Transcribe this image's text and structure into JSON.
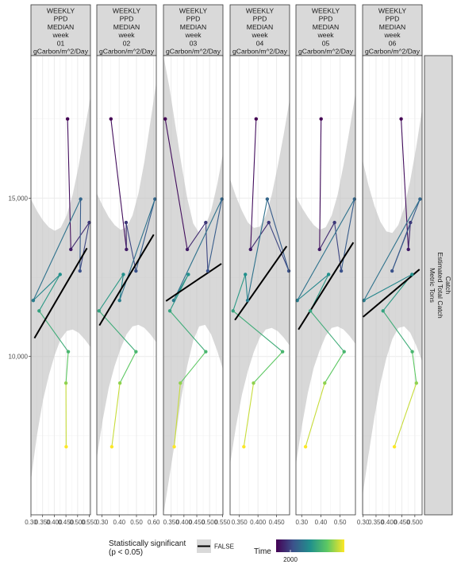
{
  "chart_data": {
    "type": "scatter",
    "row_strip_lines": [
      "Catch",
      "Estimated Total Catch",
      "Metric Tons"
    ],
    "y_ticks": [
      10000,
      15000
    ],
    "y_tick_labels": [
      "10,000",
      "15,000"
    ],
    "ylim": [
      5000,
      19500
    ],
    "panels": [
      {
        "strip_lines": [
          "WEEKLY",
          "PPD",
          "MEDIAN",
          "week",
          "01",
          "gCarbon/m^2/Day"
        ],
        "xlim": [
          0.3,
          0.555
        ],
        "x_ticks": [
          0.3,
          0.35,
          0.4,
          0.45,
          0.5,
          0.55
        ],
        "x_tick_labels": [
          "0.30",
          "0.350",
          "0.400",
          "0.450",
          "0.500",
          "0.550"
        ],
        "points": [
          {
            "x": 0.457,
            "y": 17500,
            "t": 0.0
          },
          {
            "x": 0.471,
            "y": 13380,
            "t": 0.08
          },
          {
            "x": 0.55,
            "y": 14230,
            "t": 0.17
          },
          {
            "x": 0.51,
            "y": 12700,
            "t": 0.25
          },
          {
            "x": 0.513,
            "y": 14970,
            "t": 0.33
          },
          {
            "x": 0.31,
            "y": 11770,
            "t": 0.42
          },
          {
            "x": 0.425,
            "y": 12590,
            "t": 0.5
          },
          {
            "x": 0.335,
            "y": 11440,
            "t": 0.58
          },
          {
            "x": 0.46,
            "y": 10150,
            "t": 0.67
          },
          {
            "x": 0.45,
            "y": 9160,
            "t": 0.83
          },
          {
            "x": 0.451,
            "y": 7150,
            "t": 1.0
          }
        ],
        "fit": {
          "x": [
            0.315,
            0.54
          ],
          "y": [
            10580,
            13420
          ]
        },
        "band_upper": [
          14970,
          14600,
          14300,
          14080,
          13970,
          14070,
          14450,
          15100,
          16000,
          17100,
          18200
        ],
        "band_lower": [
          6100,
          7500,
          8600,
          9400,
          10050,
          10550,
          10800,
          10850,
          10750,
          10550,
          10300
        ]
      },
      {
        "strip_lines": [
          "WEEKLY",
          "PPD",
          "MEDIAN",
          "week",
          "02",
          "gCarbon/m^2/Day"
        ],
        "xlim": [
          0.27,
          0.615
        ],
        "x_ticks": [
          0.3,
          0.4,
          0.5,
          0.6
        ],
        "x_tick_labels": [
          "0.30",
          "0.40",
          "0.50",
          "0.60"
        ],
        "points": [
          {
            "x": 0.352,
            "y": 17500,
            "t": 0.0
          },
          {
            "x": 0.442,
            "y": 13380,
            "t": 0.08
          },
          {
            "x": 0.44,
            "y": 14230,
            "t": 0.17
          },
          {
            "x": 0.497,
            "y": 12700,
            "t": 0.25
          },
          {
            "x": 0.607,
            "y": 14970,
            "t": 0.33
          },
          {
            "x": 0.402,
            "y": 11770,
            "t": 0.42
          },
          {
            "x": 0.424,
            "y": 12590,
            "t": 0.5
          },
          {
            "x": 0.283,
            "y": 11440,
            "t": 0.58
          },
          {
            "x": 0.497,
            "y": 10150,
            "t": 0.67
          },
          {
            "x": 0.404,
            "y": 9160,
            "t": 0.83
          },
          {
            "x": 0.357,
            "y": 7150,
            "t": 1.0
          }
        ],
        "fit": {
          "x": [
            0.285,
            0.6
          ],
          "y": [
            10980,
            13850
          ]
        },
        "band_upper": [
          15150,
          14750,
          14400,
          14150,
          14000,
          14080,
          14450,
          15150,
          16150,
          17400,
          18650
        ],
        "band_lower": [
          6800,
          8000,
          9000,
          9700,
          10250,
          10700,
          10950,
          11000,
          10900,
          10700,
          10450
        ]
      },
      {
        "strip_lines": [
          "WEEKLY",
          "PPD",
          "MEDIAN",
          "week",
          "03",
          "gCarbon/m^2/Day"
        ],
        "xlim": [
          0.32,
          0.552
        ],
        "x_ticks": [
          0.35,
          0.4,
          0.45,
          0.5,
          0.55
        ],
        "x_tick_labels": [
          "0.350",
          "0.400",
          "0.450",
          "0.500",
          "0.550"
        ],
        "points": [
          {
            "x": 0.327,
            "y": 17500,
            "t": 0.0
          },
          {
            "x": 0.413,
            "y": 13380,
            "t": 0.08
          },
          {
            "x": 0.485,
            "y": 14230,
            "t": 0.17
          },
          {
            "x": 0.493,
            "y": 12700,
            "t": 0.25
          },
          {
            "x": 0.548,
            "y": 14970,
            "t": 0.33
          },
          {
            "x": 0.36,
            "y": 11770,
            "t": 0.42
          },
          {
            "x": 0.417,
            "y": 12590,
            "t": 0.5
          },
          {
            "x": 0.345,
            "y": 11440,
            "t": 0.58
          },
          {
            "x": 0.485,
            "y": 10150,
            "t": 0.67
          },
          {
            "x": 0.386,
            "y": 9160,
            "t": 0.83
          },
          {
            "x": 0.362,
            "y": 7150,
            "t": 1.0
          }
        ],
        "fit": {
          "x": [
            0.33,
            0.546
          ],
          "y": [
            11750,
            12930
          ]
        },
        "band_upper": [
          19500,
          18500,
          17300,
          16100,
          15000,
          14200,
          13900,
          14100,
          14600,
          15400,
          16400
        ],
        "band_lower": [
          5000,
          6200,
          7400,
          8700,
          9700,
          10500,
          10950,
          11000,
          10700,
          10200,
          9600
        ]
      },
      {
        "strip_lines": [
          "WEEKLY",
          "PPD",
          "MEDIAN",
          "week",
          "04",
          "gCarbon/m^2/Day"
        ],
        "xlim": [
          0.325,
          0.485
        ],
        "x_ticks": [
          0.35,
          0.4,
          0.45
        ],
        "x_tick_labels": [
          "0.350",
          "0.400",
          "0.450"
        ],
        "points": [
          {
            "x": 0.395,
            "y": 17500,
            "t": 0.0
          },
          {
            "x": 0.38,
            "y": 13380,
            "t": 0.08
          },
          {
            "x": 0.429,
            "y": 14230,
            "t": 0.17
          },
          {
            "x": 0.483,
            "y": 12700,
            "t": 0.25
          },
          {
            "x": 0.425,
            "y": 14970,
            "t": 0.33
          },
          {
            "x": 0.372,
            "y": 11770,
            "t": 0.42
          },
          {
            "x": 0.366,
            "y": 12590,
            "t": 0.5
          },
          {
            "x": 0.333,
            "y": 11440,
            "t": 0.58
          },
          {
            "x": 0.466,
            "y": 10150,
            "t": 0.67
          },
          {
            "x": 0.388,
            "y": 9160,
            "t": 0.83
          },
          {
            "x": 0.362,
            "y": 7150,
            "t": 1.0
          }
        ],
        "fit": {
          "x": [
            0.338,
            0.477
          ],
          "y": [
            11150,
            13480
          ]
        },
        "band_upper": [
          15600,
          15050,
          14600,
          14230,
          14060,
          14100,
          14450,
          15100,
          16000,
          17000,
          18100
        ],
        "band_lower": [
          6600,
          7800,
          8800,
          9550,
          10150,
          10600,
          10850,
          10900,
          10800,
          10600,
          10350
        ]
      },
      {
        "strip_lines": [
          "WEEKLY",
          "PPD",
          "MEDIAN",
          "week",
          "05",
          "gCarbon/m^2/Day"
        ],
        "xlim": [
          0.27,
          0.58
        ],
        "x_ticks": [
          0.3,
          0.4,
          0.5
        ],
        "x_tick_labels": [
          "0.30",
          "0.40",
          "0.50"
        ],
        "points": [
          {
            "x": 0.401,
            "y": 17500,
            "t": 0.0
          },
          {
            "x": 0.393,
            "y": 13380,
            "t": 0.08
          },
          {
            "x": 0.471,
            "y": 14230,
            "t": 0.17
          },
          {
            "x": 0.506,
            "y": 12700,
            "t": 0.25
          },
          {
            "x": 0.575,
            "y": 14970,
            "t": 0.33
          },
          {
            "x": 0.277,
            "y": 11770,
            "t": 0.42
          },
          {
            "x": 0.44,
            "y": 12590,
            "t": 0.5
          },
          {
            "x": 0.345,
            "y": 11440,
            "t": 0.58
          },
          {
            "x": 0.521,
            "y": 10150,
            "t": 0.67
          },
          {
            "x": 0.42,
            "y": 9160,
            "t": 0.83
          },
          {
            "x": 0.32,
            "y": 7150,
            "t": 1.0
          }
        ],
        "fit": {
          "x": [
            0.283,
            0.569
          ],
          "y": [
            10850,
            13600
          ]
        },
        "band_upper": [
          15050,
          14700,
          14400,
          14150,
          14000,
          14080,
          14450,
          15100,
          16050,
          17150,
          18300
        ],
        "band_lower": [
          6600,
          7800,
          8850,
          9650,
          10200,
          10650,
          10900,
          10950,
          10850,
          10650,
          10400
        ]
      },
      {
        "strip_lines": [
          "WEEKLY",
          "PPD",
          "MEDIAN",
          "week",
          "06",
          "gCarbon/m^2/Day"
        ],
        "xlim": [
          0.298,
          0.528
        ],
        "x_ticks": [
          0.3,
          0.35,
          0.4,
          0.45,
          0.5
        ],
        "x_tick_labels": [
          "0.30",
          "0.350",
          "0.400",
          "0.450",
          "0.500"
        ],
        "points": [
          {
            "x": 0.447,
            "y": 17500,
            "t": 0.0
          },
          {
            "x": 0.475,
            "y": 13380,
            "t": 0.08
          },
          {
            "x": 0.483,
            "y": 14230,
            "t": 0.17
          },
          {
            "x": 0.412,
            "y": 12700,
            "t": 0.25
          },
          {
            "x": 0.52,
            "y": 14970,
            "t": 0.33
          },
          {
            "x": 0.303,
            "y": 11770,
            "t": 0.42
          },
          {
            "x": 0.489,
            "y": 12590,
            "t": 0.5
          },
          {
            "x": 0.377,
            "y": 11440,
            "t": 0.58
          },
          {
            "x": 0.49,
            "y": 10150,
            "t": 0.67
          },
          {
            "x": 0.506,
            "y": 9160,
            "t": 0.83
          },
          {
            "x": 0.421,
            "y": 7150,
            "t": 1.0
          }
        ],
        "fit": {
          "x": [
            0.3,
            0.518
          ],
          "y": [
            11250,
            12750
          ]
        },
        "band_upper": [
          16200,
          15400,
          14750,
          14250,
          13950,
          13900,
          14150,
          14700,
          15550,
          16600,
          17800
        ],
        "band_lower": [
          5600,
          6900,
          8100,
          9150,
          9950,
          10550,
          10900,
          10950,
          10750,
          10350,
          9850
        ]
      }
    ],
    "legend": {
      "significance_title_lines": [
        "Statistically significant",
        "(p < 0.05)"
      ],
      "significance_entry": "FALSE",
      "time_title": "Time",
      "time_tick": "2000",
      "colors": [
        "#440154",
        "#3b528b",
        "#21908c",
        "#5dc863",
        "#fde725"
      ]
    },
    "colors": {
      "fit_line": "#000000",
      "band": "#bebebe",
      "strip_fill": "#d9d9d9",
      "gridline": "#ebebeb"
    }
  }
}
